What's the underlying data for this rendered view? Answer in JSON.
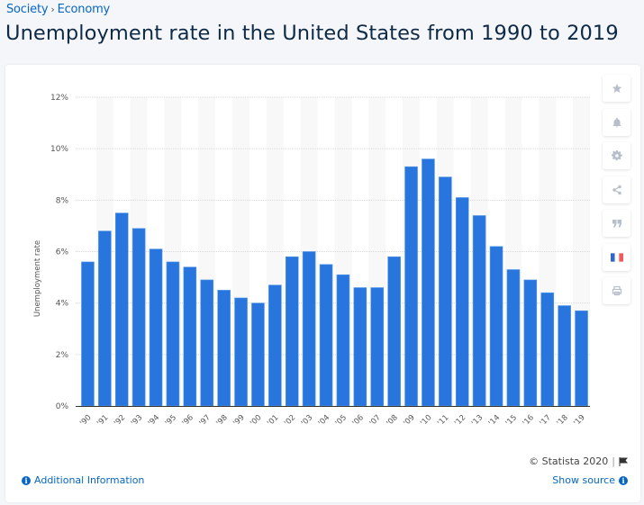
{
  "breadcrumb": {
    "items": [
      "Society",
      "Economy"
    ],
    "separator": "›"
  },
  "header": {
    "title": "Unemployment rate in the United States from 1990 to 2019"
  },
  "toolbar": {
    "buttons": [
      {
        "name": "favorite",
        "icon": "star-icon"
      },
      {
        "name": "notify",
        "icon": "bell-icon"
      },
      {
        "name": "settings",
        "icon": "gear-icon"
      },
      {
        "name": "share",
        "icon": "share-icon"
      },
      {
        "name": "cite",
        "icon": "quote-icon"
      },
      {
        "name": "language",
        "icon": "french-flag-icon"
      },
      {
        "name": "print",
        "icon": "printer-icon"
      }
    ]
  },
  "footer": {
    "copyright": "© Statista 2020",
    "additional_info": "Additional Information",
    "show_source": "Show source"
  },
  "colors": {
    "bar": "#2876dd",
    "link": "#0666c1",
    "title": "#0e2a47"
  },
  "chart_data": {
    "type": "bar",
    "title": "Unemployment rate in the United States from 1990 to 2019",
    "xlabel": "",
    "ylabel": "Unemployment rate",
    "categories": [
      "'90",
      "'91",
      "'92",
      "'93",
      "'94",
      "'95",
      "'96",
      "'97",
      "'98",
      "'99",
      "'00",
      "'01",
      "'02",
      "'03",
      "'04",
      "'05",
      "'06",
      "'07",
      "'08",
      "'09",
      "'10",
      "'11",
      "'12",
      "'13",
      "'14",
      "'15",
      "'16",
      "'17",
      "'18",
      "'19"
    ],
    "values": [
      5.6,
      6.8,
      7.5,
      6.9,
      6.1,
      5.6,
      5.4,
      4.9,
      4.5,
      4.2,
      4.0,
      4.7,
      5.8,
      6.0,
      5.5,
      5.1,
      4.6,
      4.6,
      5.8,
      9.3,
      9.6,
      8.9,
      8.1,
      7.4,
      6.2,
      5.3,
      4.9,
      4.4,
      3.9,
      3.7
    ],
    "unit": "%",
    "ylim": [
      0,
      12
    ],
    "yticks": [
      0,
      2,
      4,
      6,
      8,
      10,
      12
    ],
    "ytick_labels": [
      "0%",
      "2%",
      "4%",
      "6%",
      "8%",
      "10%",
      "12%"
    ],
    "grid": true,
    "legend": "none"
  }
}
